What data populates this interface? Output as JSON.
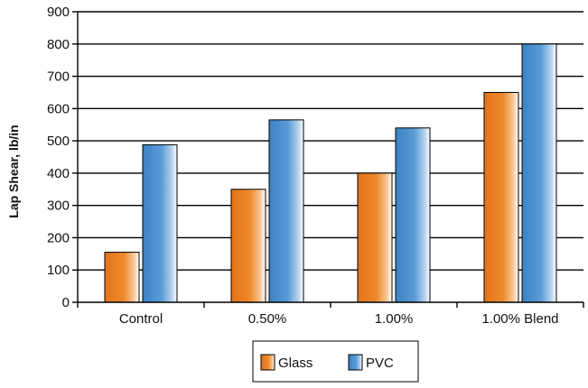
{
  "chart_data": {
    "type": "bar",
    "categories": [
      "Control",
      "0.50%",
      "1.00%",
      "1.00% Blend"
    ],
    "series": [
      {
        "name": "Glass",
        "values": [
          155,
          350,
          400,
          650
        ],
        "color": "#e67e22"
      },
      {
        "name": "PVC",
        "values": [
          488,
          565,
          540,
          800
        ],
        "color": "#3d88c9"
      }
    ],
    "title": "",
    "xlabel": "",
    "ylabel": "Lap Shear, lb/in",
    "ylim": [
      0,
      900
    ],
    "yticks": [
      0,
      100,
      200,
      300,
      400,
      500,
      600,
      700,
      800,
      900
    ],
    "grid": true,
    "legend_position": "bottom"
  }
}
